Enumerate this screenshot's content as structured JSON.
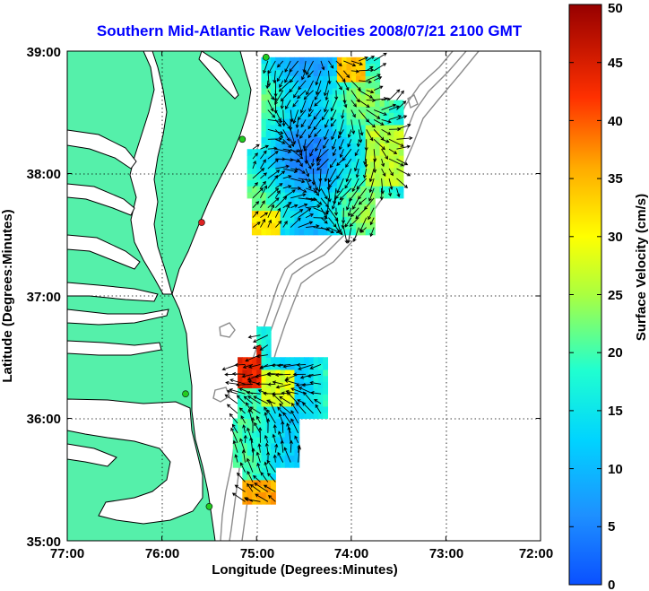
{
  "chart_data": {
    "type": "heatmap",
    "title": "Southern Mid-Atlantic Raw Velocities 2008/07/21 2100 GMT",
    "xlabel": "Longitude (Degrees:Minutes)",
    "ylabel": "Latitude (Degrees:Minutes)",
    "xlim": [
      -77,
      -72
    ],
    "ylim": [
      35,
      39
    ],
    "x_ticks": [
      {
        "value": -77,
        "label": "77:00"
      },
      {
        "value": -76,
        "label": "76:00"
      },
      {
        "value": -75,
        "label": "75:00"
      },
      {
        "value": -74,
        "label": "74:00"
      },
      {
        "value": -73,
        "label": "73:00"
      },
      {
        "value": -72,
        "label": "72:00"
      }
    ],
    "y_ticks": [
      {
        "value": 35,
        "label": "35:00"
      },
      {
        "value": 36,
        "label": "36:00"
      },
      {
        "value": 37,
        "label": "37:00"
      },
      {
        "value": 38,
        "label": "38:00"
      },
      {
        "value": 39,
        "label": "39:00"
      }
    ],
    "grid": true,
    "colorbar": {
      "label": "Surface Velocity (cm/s)",
      "range": [
        0,
        50
      ],
      "ticks": [
        "0",
        "5",
        "10",
        "15",
        "20",
        "25",
        "30",
        "35",
        "40",
        "45",
        "50"
      ],
      "colormap": "jet"
    },
    "land_color": "#55f0aa",
    "coast_color": "#000000",
    "bathymetry_color": "#8c8c8c",
    "velocity_patches": [
      {
        "region": "northern",
        "lon_range": [
          -75.1,
          -73.4
        ],
        "lat_range": [
          37.5,
          38.95
        ],
        "speed_range": [
          5,
          35
        ]
      },
      {
        "region": "southern",
        "lon_range": [
          -75.2,
          -74.2
        ],
        "lat_range": [
          35.3,
          36.75
        ],
        "speed_range": [
          8,
          45
        ]
      }
    ],
    "stations": [
      {
        "lon": -74.9,
        "lat": 38.95,
        "color": "#22cc22"
      },
      {
        "lon": -75.15,
        "lat": 38.28,
        "color": "#22cc22"
      },
      {
        "lon": -75.58,
        "lat": 37.6,
        "color": "#dd2222"
      },
      {
        "lon": -75.75,
        "lat": 36.2,
        "color": "#22cc22"
      },
      {
        "lon": -75.5,
        "lat": 35.28,
        "color": "#22cc22"
      }
    ]
  }
}
